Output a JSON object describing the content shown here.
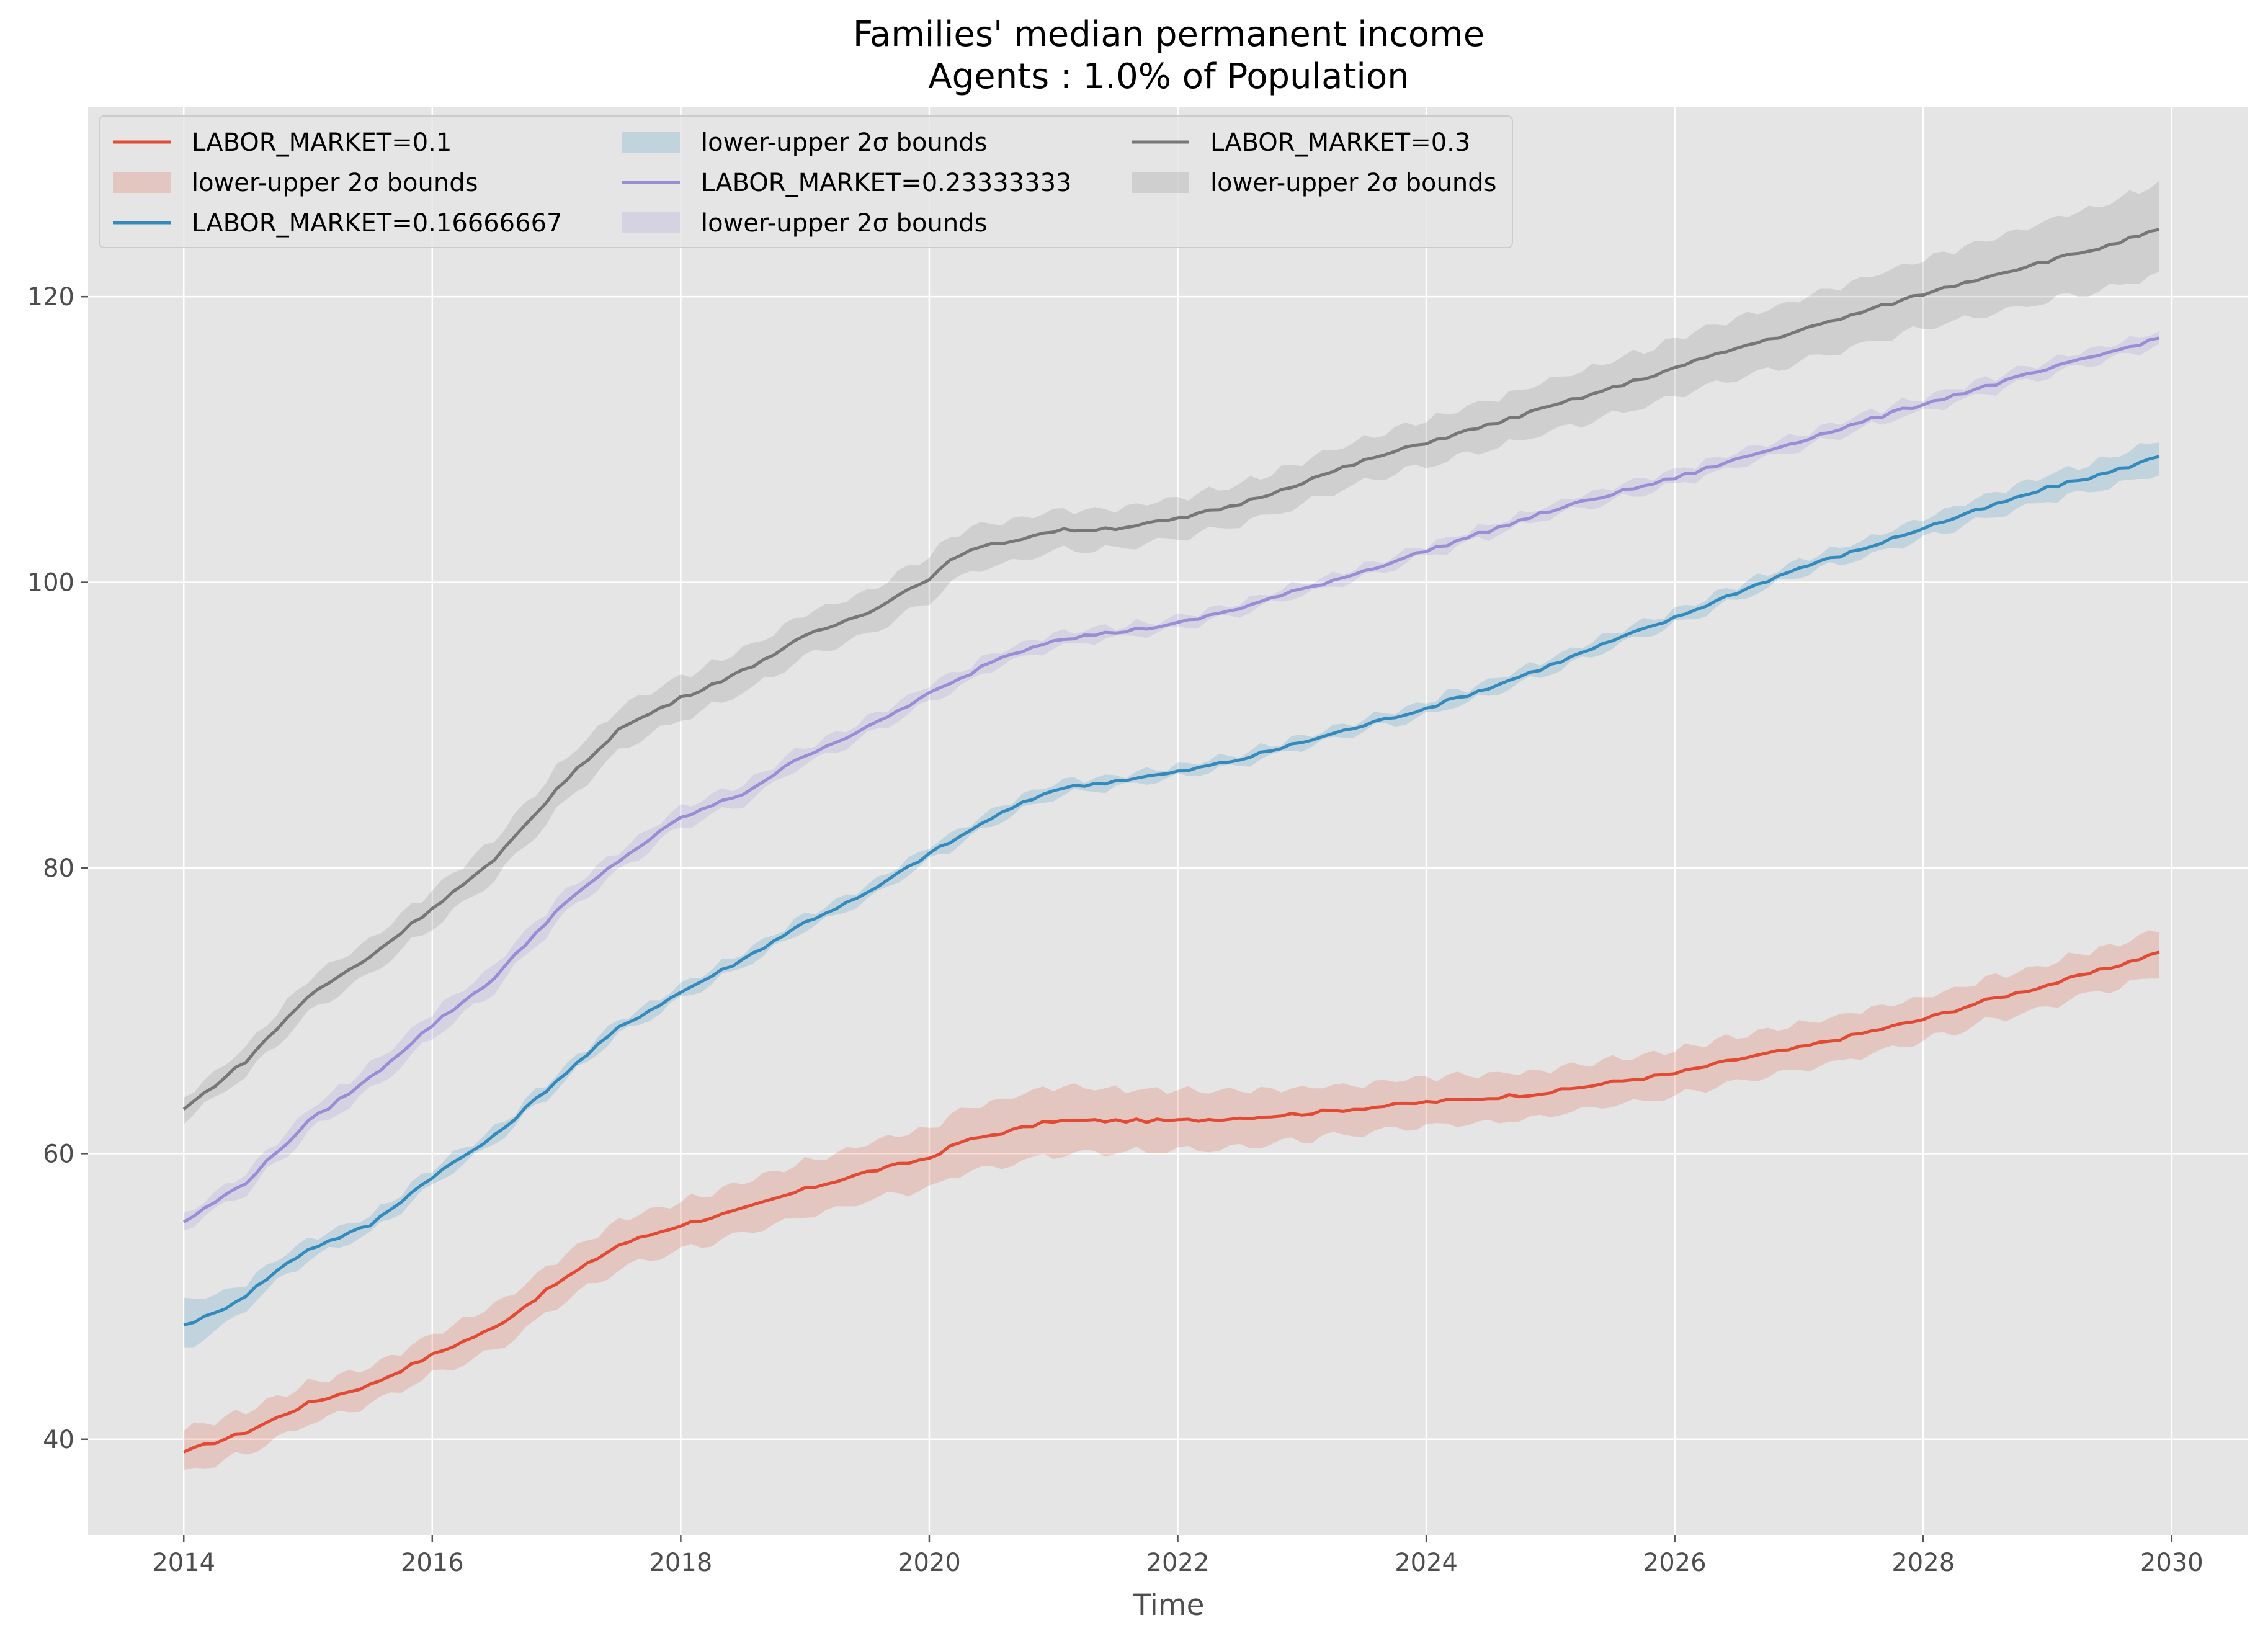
{
  "chart_data": {
    "type": "line",
    "title": "Families' median permanent income",
    "subtitle": "Agents : 1.0% of Population",
    "xlabel": "Time",
    "ylabel": "",
    "xlim": [
      2013.23,
      2030.61
    ],
    "ylim": [
      33.3,
      133.3
    ],
    "x_ticks": [
      2014,
      2016,
      2018,
      2020,
      2022,
      2024,
      2026,
      2028,
      2030
    ],
    "y_ticks": [
      40,
      60,
      80,
      100,
      120
    ],
    "grid": true,
    "legend_placement": "top-left",
    "background_color": "#e5e5e5",
    "series": [
      {
        "name": "LABOR_MARKET=0.1",
        "band_name": "lower-upper 2σ bounds",
        "color": "#E24A33",
        "band_color": "#E24A33",
        "points": [
          [
            2014.0,
            39.1
          ],
          [
            2014.5,
            40.5
          ],
          [
            2015.0,
            42.5
          ],
          [
            2015.5,
            43.8
          ],
          [
            2016.0,
            45.9
          ],
          [
            2016.5,
            47.8
          ],
          [
            2017.0,
            50.9
          ],
          [
            2017.5,
            53.6
          ],
          [
            2018.0,
            55.0
          ],
          [
            2018.5,
            56.1
          ],
          [
            2019.0,
            57.5
          ],
          [
            2019.5,
            58.7
          ],
          [
            2020.0,
            59.7
          ],
          [
            2020.25,
            60.8
          ],
          [
            2020.5,
            61.3
          ],
          [
            2021.0,
            62.3
          ],
          [
            2021.5,
            62.3
          ],
          [
            2022.0,
            62.3
          ],
          [
            2022.5,
            62.5
          ],
          [
            2023.0,
            62.8
          ],
          [
            2023.5,
            63.2
          ],
          [
            2024.0,
            63.6
          ],
          [
            2024.5,
            63.9
          ],
          [
            2025.0,
            64.3
          ],
          [
            2025.5,
            65.0
          ],
          [
            2026.0,
            65.6
          ],
          [
            2026.5,
            66.6
          ],
          [
            2027.0,
            67.4
          ],
          [
            2027.5,
            68.4
          ],
          [
            2028.0,
            69.4
          ],
          [
            2028.5,
            70.7
          ],
          [
            2029.0,
            71.8
          ],
          [
            2029.5,
            73.0
          ],
          [
            2029.9,
            74.1
          ]
        ],
        "band_width": [
          1.5,
          1.5,
          1.4,
          1.3,
          1.4,
          1.6,
          1.6,
          1.7,
          1.7,
          1.8,
          1.9,
          2.0,
          2.1,
          2.2,
          2.3,
          2.4,
          2.2,
          2.1,
          2.0,
          1.8,
          1.7,
          1.7,
          1.7,
          1.6,
          1.6,
          1.6,
          1.6,
          1.6,
          1.6,
          1.5,
          1.5,
          1.5,
          1.5,
          1.6
        ]
      },
      {
        "name": "LABOR_MARKET=0.16666667",
        "band_name": "lower-upper 2σ bounds",
        "color": "#348ABD",
        "band_color": "#348ABD",
        "points": [
          [
            2014.0,
            48.0
          ],
          [
            2014.25,
            48.8
          ],
          [
            2014.5,
            50.1
          ],
          [
            2014.75,
            51.8
          ],
          [
            2015.0,
            53.3
          ],
          [
            2015.5,
            55.0
          ],
          [
            2016.0,
            58.4
          ],
          [
            2016.5,
            61.2
          ],
          [
            2017.0,
            65.1
          ],
          [
            2017.5,
            68.8
          ],
          [
            2018.0,
            71.3
          ],
          [
            2018.5,
            73.6
          ],
          [
            2019.0,
            76.2
          ],
          [
            2019.5,
            78.2
          ],
          [
            2020.0,
            81.0
          ],
          [
            2020.25,
            82.2
          ],
          [
            2020.5,
            83.5
          ],
          [
            2021.0,
            85.5
          ],
          [
            2021.5,
            86.1
          ],
          [
            2022.0,
            86.7
          ],
          [
            2022.5,
            87.6
          ],
          [
            2023.0,
            88.8
          ],
          [
            2023.5,
            90.0
          ],
          [
            2024.0,
            91.2
          ],
          [
            2024.5,
            92.6
          ],
          [
            2025.0,
            94.2
          ],
          [
            2025.5,
            95.9
          ],
          [
            2026.0,
            97.5
          ],
          [
            2026.5,
            99.3
          ],
          [
            2027.0,
            101.0
          ],
          [
            2027.5,
            102.3
          ],
          [
            2028.0,
            103.8
          ],
          [
            2028.5,
            105.2
          ],
          [
            2029.0,
            106.6
          ],
          [
            2029.5,
            107.7
          ],
          [
            2029.9,
            108.8
          ]
        ],
        "band_width": [
          1.7,
          1.3,
          0.9,
          0.8,
          0.7,
          0.6,
          0.6,
          0.5,
          0.5,
          0.5,
          0.5,
          0.5,
          0.5,
          0.5,
          0.5,
          0.5,
          0.5,
          0.5,
          0.4,
          0.4,
          0.4,
          0.4,
          0.4,
          0.5,
          0.5,
          0.5,
          0.5,
          0.5,
          0.5,
          0.5,
          0.6,
          0.7,
          0.8,
          0.9,
          1.0,
          1.2
        ]
      },
      {
        "name": "LABOR_MARKET=0.23333333",
        "band_name": "lower-upper 2σ bounds",
        "color": "#988ED5",
        "band_color": "#988ED5",
        "points": [
          [
            2014.0,
            55.2
          ],
          [
            2014.5,
            58.0
          ],
          [
            2015.0,
            62.2
          ],
          [
            2015.5,
            65.3
          ],
          [
            2016.0,
            69.0
          ],
          [
            2016.5,
            72.3
          ],
          [
            2017.0,
            77.0
          ],
          [
            2017.5,
            80.5
          ],
          [
            2018.0,
            83.5
          ],
          [
            2018.5,
            85.2
          ],
          [
            2019.0,
            87.9
          ],
          [
            2019.5,
            89.8
          ],
          [
            2020.0,
            92.2
          ],
          [
            2020.25,
            93.2
          ],
          [
            2020.5,
            94.5
          ],
          [
            2021.0,
            96.0
          ],
          [
            2021.5,
            96.5
          ],
          [
            2022.0,
            97.1
          ],
          [
            2022.5,
            98.2
          ],
          [
            2023.0,
            99.5
          ],
          [
            2023.5,
            100.8
          ],
          [
            2024.0,
            102.2
          ],
          [
            2024.5,
            103.6
          ],
          [
            2025.0,
            105.0
          ],
          [
            2025.5,
            106.2
          ],
          [
            2026.0,
            107.3
          ],
          [
            2026.5,
            108.6
          ],
          [
            2027.0,
            109.9
          ],
          [
            2027.5,
            111.2
          ],
          [
            2028.0,
            112.5
          ],
          [
            2028.5,
            113.7
          ],
          [
            2029.0,
            114.9
          ],
          [
            2029.5,
            116.1
          ],
          [
            2029.9,
            117.1
          ]
        ],
        "band_width": [
          0.5,
          0.7,
          0.8,
          0.9,
          0.9,
          0.9,
          0.8,
          0.7,
          0.7,
          0.7,
          0.6,
          0.6,
          0.6,
          0.6,
          0.5,
          0.5,
          0.4,
          0.4,
          0.4,
          0.4,
          0.4,
          0.4,
          0.4,
          0.4,
          0.5,
          0.5,
          0.5,
          0.5,
          0.5,
          0.5,
          0.5,
          0.5,
          0.5,
          0.5
        ]
      },
      {
        "name": "LABOR_MARKET=0.3",
        "band_name": "lower-upper 2σ bounds",
        "color": "#777777",
        "band_color": "#777777",
        "points": [
          [
            2014.0,
            63.1
          ],
          [
            2014.5,
            66.5
          ],
          [
            2015.0,
            71.0
          ],
          [
            2015.5,
            73.8
          ],
          [
            2016.0,
            77.2
          ],
          [
            2016.5,
            80.5
          ],
          [
            2017.0,
            85.5
          ],
          [
            2017.5,
            89.7
          ],
          [
            2018.0,
            91.9
          ],
          [
            2018.5,
            93.8
          ],
          [
            2019.0,
            96.2
          ],
          [
            2019.5,
            97.9
          ],
          [
            2020.0,
            100.3
          ],
          [
            2020.25,
            102.0
          ],
          [
            2020.5,
            102.6
          ],
          [
            2021.0,
            103.6
          ],
          [
            2021.5,
            103.8
          ],
          [
            2022.0,
            104.4
          ],
          [
            2022.5,
            105.5
          ],
          [
            2023.0,
            107.0
          ],
          [
            2023.5,
            108.5
          ],
          [
            2024.0,
            109.8
          ],
          [
            2024.5,
            111.0
          ],
          [
            2025.0,
            112.3
          ],
          [
            2025.5,
            113.6
          ],
          [
            2026.0,
            115.0
          ],
          [
            2026.5,
            116.4
          ],
          [
            2027.0,
            117.6
          ],
          [
            2027.5,
            118.9
          ],
          [
            2028.0,
            120.2
          ],
          [
            2028.5,
            121.4
          ],
          [
            2029.0,
            122.5
          ],
          [
            2029.5,
            123.6
          ],
          [
            2029.9,
            124.7
          ]
        ],
        "band_width": [
          0.8,
          1.0,
          1.2,
          1.2,
          1.3,
          1.4,
          1.5,
          1.5,
          1.5,
          1.5,
          1.5,
          1.5,
          1.6,
          1.6,
          1.5,
          1.4,
          1.4,
          1.4,
          1.4,
          1.5,
          1.5,
          1.6,
          1.7,
          1.8,
          1.9,
          2.0,
          2.1,
          2.2,
          2.3,
          2.4,
          2.6,
          2.8,
          3.0,
          3.2
        ]
      }
    ]
  }
}
